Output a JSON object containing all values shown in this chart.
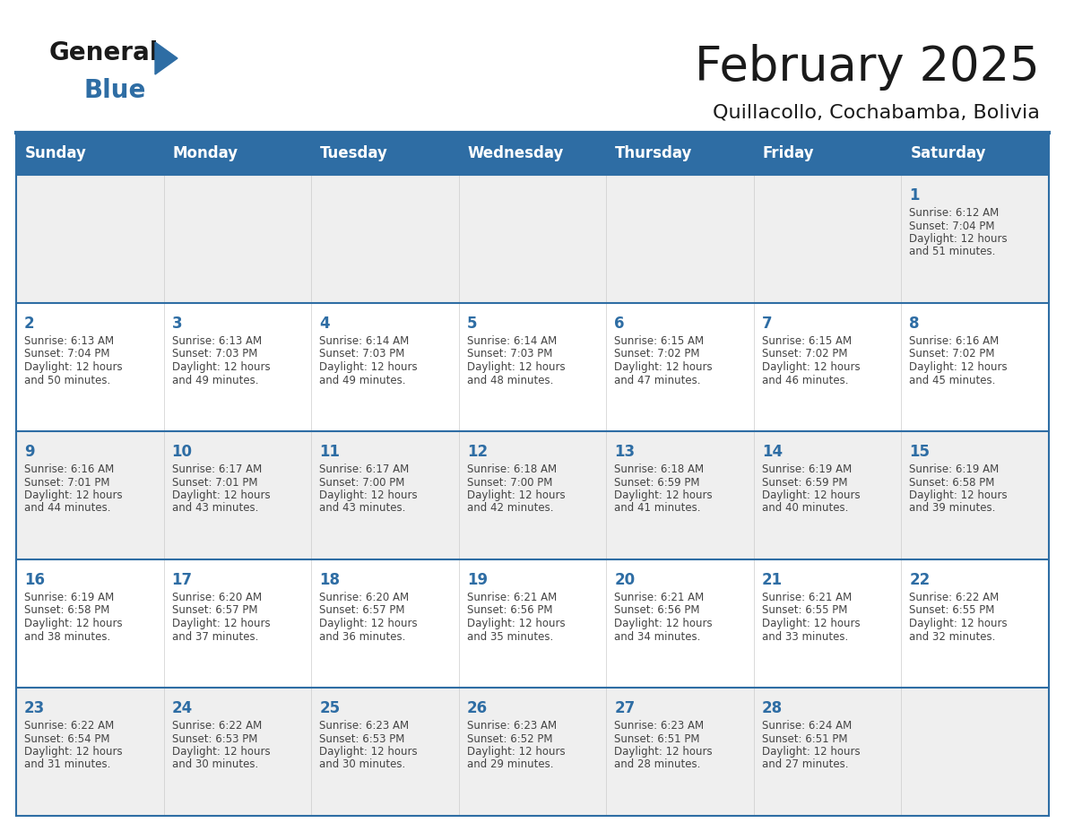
{
  "title": "February 2025",
  "subtitle": "Quillacollo, Cochabamba, Bolivia",
  "header_bg": "#2E6DA4",
  "header_text_color": "#FFFFFF",
  "cell_bg_light": "#EFEFEF",
  "cell_bg_white": "#FFFFFF",
  "grid_line_color": "#2E6DA4",
  "day_number_color": "#2E6DA4",
  "text_color": "#444444",
  "days_of_week": [
    "Sunday",
    "Monday",
    "Tuesday",
    "Wednesday",
    "Thursday",
    "Friday",
    "Saturday"
  ],
  "weeks": [
    [
      null,
      null,
      null,
      null,
      null,
      null,
      1
    ],
    [
      2,
      3,
      4,
      5,
      6,
      7,
      8
    ],
    [
      9,
      10,
      11,
      12,
      13,
      14,
      15
    ],
    [
      16,
      17,
      18,
      19,
      20,
      21,
      22
    ],
    [
      23,
      24,
      25,
      26,
      27,
      28,
      null
    ]
  ],
  "cell_data": {
    "1": {
      "sunrise": "6:12 AM",
      "sunset": "7:04 PM",
      "daylight_line1": "Daylight: 12 hours",
      "daylight_line2": "and 51 minutes."
    },
    "2": {
      "sunrise": "6:13 AM",
      "sunset": "7:04 PM",
      "daylight_line1": "Daylight: 12 hours",
      "daylight_line2": "and 50 minutes."
    },
    "3": {
      "sunrise": "6:13 AM",
      "sunset": "7:03 PM",
      "daylight_line1": "Daylight: 12 hours",
      "daylight_line2": "and 49 minutes."
    },
    "4": {
      "sunrise": "6:14 AM",
      "sunset": "7:03 PM",
      "daylight_line1": "Daylight: 12 hours",
      "daylight_line2": "and 49 minutes."
    },
    "5": {
      "sunrise": "6:14 AM",
      "sunset": "7:03 PM",
      "daylight_line1": "Daylight: 12 hours",
      "daylight_line2": "and 48 minutes."
    },
    "6": {
      "sunrise": "6:15 AM",
      "sunset": "7:02 PM",
      "daylight_line1": "Daylight: 12 hours",
      "daylight_line2": "and 47 minutes."
    },
    "7": {
      "sunrise": "6:15 AM",
      "sunset": "7:02 PM",
      "daylight_line1": "Daylight: 12 hours",
      "daylight_line2": "and 46 minutes."
    },
    "8": {
      "sunrise": "6:16 AM",
      "sunset": "7:02 PM",
      "daylight_line1": "Daylight: 12 hours",
      "daylight_line2": "and 45 minutes."
    },
    "9": {
      "sunrise": "6:16 AM",
      "sunset": "7:01 PM",
      "daylight_line1": "Daylight: 12 hours",
      "daylight_line2": "and 44 minutes."
    },
    "10": {
      "sunrise": "6:17 AM",
      "sunset": "7:01 PM",
      "daylight_line1": "Daylight: 12 hours",
      "daylight_line2": "and 43 minutes."
    },
    "11": {
      "sunrise": "6:17 AM",
      "sunset": "7:00 PM",
      "daylight_line1": "Daylight: 12 hours",
      "daylight_line2": "and 43 minutes."
    },
    "12": {
      "sunrise": "6:18 AM",
      "sunset": "7:00 PM",
      "daylight_line1": "Daylight: 12 hours",
      "daylight_line2": "and 42 minutes."
    },
    "13": {
      "sunrise": "6:18 AM",
      "sunset": "6:59 PM",
      "daylight_line1": "Daylight: 12 hours",
      "daylight_line2": "and 41 minutes."
    },
    "14": {
      "sunrise": "6:19 AM",
      "sunset": "6:59 PM",
      "daylight_line1": "Daylight: 12 hours",
      "daylight_line2": "and 40 minutes."
    },
    "15": {
      "sunrise": "6:19 AM",
      "sunset": "6:58 PM",
      "daylight_line1": "Daylight: 12 hours",
      "daylight_line2": "and 39 minutes."
    },
    "16": {
      "sunrise": "6:19 AM",
      "sunset": "6:58 PM",
      "daylight_line1": "Daylight: 12 hours",
      "daylight_line2": "and 38 minutes."
    },
    "17": {
      "sunrise": "6:20 AM",
      "sunset": "6:57 PM",
      "daylight_line1": "Daylight: 12 hours",
      "daylight_line2": "and 37 minutes."
    },
    "18": {
      "sunrise": "6:20 AM",
      "sunset": "6:57 PM",
      "daylight_line1": "Daylight: 12 hours",
      "daylight_line2": "and 36 minutes."
    },
    "19": {
      "sunrise": "6:21 AM",
      "sunset": "6:56 PM",
      "daylight_line1": "Daylight: 12 hours",
      "daylight_line2": "and 35 minutes."
    },
    "20": {
      "sunrise": "6:21 AM",
      "sunset": "6:56 PM",
      "daylight_line1": "Daylight: 12 hours",
      "daylight_line2": "and 34 minutes."
    },
    "21": {
      "sunrise": "6:21 AM",
      "sunset": "6:55 PM",
      "daylight_line1": "Daylight: 12 hours",
      "daylight_line2": "and 33 minutes."
    },
    "22": {
      "sunrise": "6:22 AM",
      "sunset": "6:55 PM",
      "daylight_line1": "Daylight: 12 hours",
      "daylight_line2": "and 32 minutes."
    },
    "23": {
      "sunrise": "6:22 AM",
      "sunset": "6:54 PM",
      "daylight_line1": "Daylight: 12 hours",
      "daylight_line2": "and 31 minutes."
    },
    "24": {
      "sunrise": "6:22 AM",
      "sunset": "6:53 PM",
      "daylight_line1": "Daylight: 12 hours",
      "daylight_line2": "and 30 minutes."
    },
    "25": {
      "sunrise": "6:23 AM",
      "sunset": "6:53 PM",
      "daylight_line1": "Daylight: 12 hours",
      "daylight_line2": "and 30 minutes."
    },
    "26": {
      "sunrise": "6:23 AM",
      "sunset": "6:52 PM",
      "daylight_line1": "Daylight: 12 hours",
      "daylight_line2": "and 29 minutes."
    },
    "27": {
      "sunrise": "6:23 AM",
      "sunset": "6:51 PM",
      "daylight_line1": "Daylight: 12 hours",
      "daylight_line2": "and 28 minutes."
    },
    "28": {
      "sunrise": "6:24 AM",
      "sunset": "6:51 PM",
      "daylight_line1": "Daylight: 12 hours",
      "daylight_line2": "and 27 minutes."
    }
  },
  "logo_general_color": "#1a1a1a",
  "logo_blue_color": "#2E6DA4",
  "title_fontsize": 38,
  "subtitle_fontsize": 16,
  "dow_fontsize": 12,
  "day_num_fontsize": 12,
  "cell_text_fontsize": 8.5
}
